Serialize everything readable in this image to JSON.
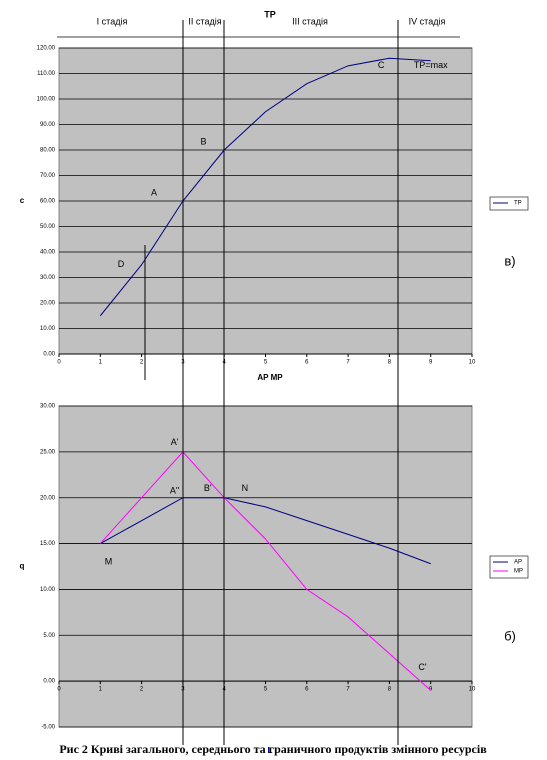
{
  "stages": [
    "I стадія",
    "II стадія",
    "III стадія",
    "IV стадія"
  ],
  "caption": "Рис 2 Криві загального, середнього та граничного продуктів змінного ресурсів",
  "chart_data": [
    {
      "type": "line",
      "title": "TP",
      "x_label": "AP MP",
      "y_label": "c",
      "panel_label": "в)",
      "x": [
        1,
        2,
        3,
        4,
        5,
        6,
        7,
        8,
        9
      ],
      "series": [
        {
          "name": "TP",
          "color": "#000080",
          "values": [
            15,
            35,
            60,
            80,
            95,
            106,
            113,
            116,
            115
          ]
        }
      ],
      "xlim": [
        0,
        10
      ],
      "xticks": [
        0,
        1,
        2,
        3,
        4,
        5,
        6,
        7,
        8,
        9,
        10
      ],
      "ylim": [
        0,
        120
      ],
      "yticks": [
        {
          "value": 0,
          "label": "0.00"
        },
        {
          "value": 10,
          "label": "10.00"
        },
        {
          "value": 20,
          "label": "20.00"
        },
        {
          "value": 30,
          "label": "30.00"
        },
        {
          "value": 40,
          "label": "40.00"
        },
        {
          "value": 50,
          "label": "50.00"
        },
        {
          "value": 60,
          "label": "60.00"
        },
        {
          "value": 70,
          "label": "70.00"
        },
        {
          "value": 80,
          "label": "80.00"
        },
        {
          "value": 90,
          "label": "90.00"
        },
        {
          "value": 100,
          "label": "100.00"
        },
        {
          "value": 110,
          "label": "110.00"
        },
        {
          "value": 120,
          "label": "120.00"
        }
      ],
      "grid": true,
      "legend": "right",
      "annotations": [
        {
          "text": "A",
          "x": 2.3,
          "y": 63
        },
        {
          "text": "B",
          "x": 3.5,
          "y": 83
        },
        {
          "text": "C",
          "x": 7.8,
          "y": 113
        },
        {
          "text": "D",
          "x": 1.5,
          "y": 35
        },
        {
          "text": "TP=max",
          "x": 9,
          "y": 113
        }
      ]
    },
    {
      "type": "line",
      "x_label": "L",
      "y_label": "q",
      "panel_label": "б)",
      "x": [
        1,
        2,
        3,
        4,
        5,
        6,
        7,
        8,
        9
      ],
      "series": [
        {
          "name": "AP",
          "color": "#000080",
          "values": [
            15,
            17.5,
            20,
            20,
            19,
            17.5,
            16,
            14.5,
            12.8
          ]
        },
        {
          "name": "MP",
          "color": "#ff00ff",
          "values": [
            15,
            20,
            25,
            20,
            15.5,
            10,
            7,
            3,
            -1
          ]
        }
      ],
      "xlim": [
        0,
        10
      ],
      "xticks": [
        0,
        1,
        2,
        3,
        4,
        5,
        6,
        7,
        8,
        9,
        10
      ],
      "ylim": [
        -5,
        30
      ],
      "yticks": [
        {
          "value": -5,
          "label": "-5.00"
        },
        {
          "value": 0,
          "label": "0.00"
        },
        {
          "value": 5,
          "label": "5.00"
        },
        {
          "value": 10,
          "label": "10.00"
        },
        {
          "value": 15,
          "label": "15.00"
        },
        {
          "value": 20,
          "label": "20.00"
        },
        {
          "value": 25,
          "label": "25.00"
        },
        {
          "value": 30,
          "label": "30.00"
        }
      ],
      "grid": true,
      "legend": "right",
      "annotations": [
        {
          "text": "A'",
          "x": 2.8,
          "y": 26
        },
        {
          "text": "A''",
          "x": 2.8,
          "y": 20.7
        },
        {
          "text": "B'",
          "x": 3.6,
          "y": 21
        },
        {
          "text": "N",
          "x": 4.5,
          "y": 21
        },
        {
          "text": "M",
          "x": 1.2,
          "y": 13
        },
        {
          "text": "C'",
          "x": 8.8,
          "y": 1.5
        }
      ]
    }
  ]
}
